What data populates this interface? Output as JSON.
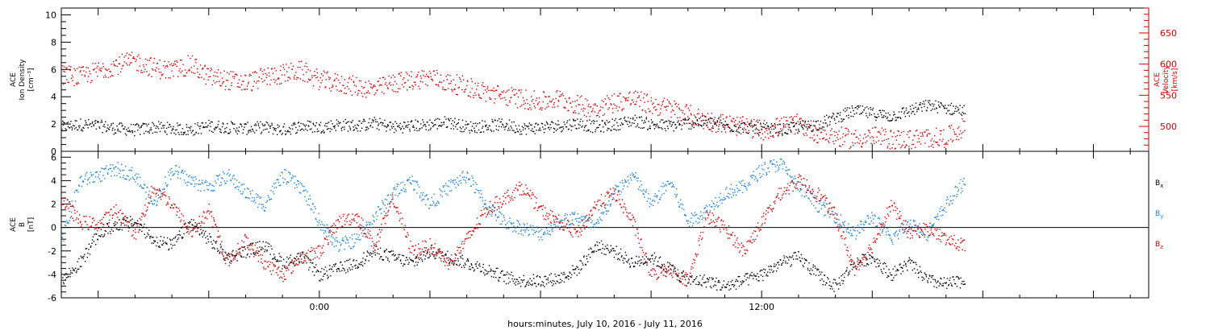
{
  "chart_data": [
    {
      "type": "scatter",
      "panel": "top",
      "xlabel": "hours:minutes, July 10, 2016 - July 11, 2016",
      "x_tick_labels": [
        "0:00",
        "12:00"
      ],
      "x_tick_hours": [
        0,
        12
      ],
      "xlim_hours": [
        -7,
        22.5
      ],
      "left_axis": {
        "label_lines": [
          "ACE",
          "Ion Density",
          "[cm⁻³]"
        ],
        "ylim": [
          0,
          10.5
        ],
        "ticks": [
          0,
          2,
          4,
          6,
          8,
          10
        ],
        "color": "#000000"
      },
      "right_axis": {
        "label_lines": [
          "ACE",
          "Velocity",
          "[km/s]"
        ],
        "ylim": [
          460,
          690
        ],
        "ticks": [
          500,
          550,
          600,
          650
        ],
        "color": "#cc0000"
      },
      "series": [
        {
          "axis": "left",
          "color": "#000000",
          "x": [
            -7,
            -6.5,
            -6,
            -5.5,
            -5,
            -4.5,
            -4,
            -3.5,
            -3,
            -2.5,
            -2,
            -1.5,
            -1,
            -0.5,
            0,
            0.5,
            1,
            1.5,
            2,
            2.5,
            3,
            3.5,
            4,
            4.5,
            5,
            5.5,
            6,
            6.5,
            7,
            7.5,
            8,
            8.5,
            9,
            9.5,
            10,
            10.5,
            11,
            11.5,
            12,
            12.5,
            13,
            13.5,
            14,
            14.5,
            15,
            15.5,
            16,
            16.5,
            17,
            17.5
          ],
          "y": [
            1.8,
            2.0,
            1.9,
            1.7,
            1.6,
            1.8,
            1.7,
            1.6,
            1.9,
            1.8,
            1.7,
            1.8,
            1.6,
            1.9,
            1.8,
            2.0,
            1.9,
            2.1,
            1.8,
            1.9,
            2.0,
            2.2,
            1.8,
            1.9,
            2.0,
            1.7,
            1.8,
            1.9,
            2.1,
            1.8,
            2.0,
            2.3,
            2.0,
            1.9,
            2.1,
            2.2,
            1.9,
            1.8,
            1.7,
            1.6,
            1.8,
            2.0,
            2.5,
            3.0,
            2.8,
            2.6,
            3.0,
            3.4,
            3.2,
            3.0
          ],
          "noise": 0.45
        },
        {
          "axis": "right",
          "color": "#cc0000",
          "x": [
            -7,
            -6.5,
            -6,
            -5.5,
            -5,
            -4.5,
            -4,
            -3.5,
            -3,
            -2.5,
            -2,
            -1.5,
            -1,
            -0.5,
            0,
            0.5,
            1,
            1.5,
            2,
            2.5,
            3,
            3.5,
            4,
            4.5,
            5,
            5.5,
            6,
            6.5,
            7,
            7.5,
            8,
            8.5,
            9,
            9.5,
            10,
            10.5,
            11,
            11.5,
            12,
            12.5,
            13,
            13.5,
            14,
            14.5,
            15,
            15.5,
            16,
            16.5,
            17,
            17.5
          ],
          "y": [
            585,
            580,
            590,
            600,
            605,
            595,
            590,
            600,
            580,
            575,
            570,
            580,
            585,
            590,
            575,
            570,
            565,
            560,
            570,
            575,
            580,
            570,
            565,
            555,
            550,
            545,
            540,
            545,
            535,
            530,
            540,
            545,
            535,
            530,
            520,
            510,
            505,
            500,
            495,
            500,
            505,
            490,
            485,
            480,
            485,
            480,
            480,
            482,
            483,
            500
          ],
          "noise": 16
        }
      ]
    },
    {
      "type": "scatter",
      "panel": "bottom",
      "xlim_hours": [
        -7,
        22.5
      ],
      "left_axis": {
        "label_lines": [
          "ACE",
          "B",
          "[nT]"
        ],
        "ylim": [
          -6,
          6.5
        ],
        "ticks": [
          -6,
          -4,
          -2,
          0,
          2,
          4,
          6
        ],
        "color": "#000000"
      },
      "zero_line": 0,
      "legend": {
        "placement": "right",
        "items": [
          {
            "label": "B",
            "sub": "x",
            "color": "#000000"
          },
          {
            "label": "B",
            "sub": "y",
            "color": "#1a7fd4"
          },
          {
            "label": "B",
            "sub": "z",
            "color": "#cc0000"
          }
        ]
      },
      "series": [
        {
          "name": "Bx",
          "color": "#000000",
          "x": [
            -7,
            -6.5,
            -6,
            -5.5,
            -5,
            -4.5,
            -4,
            -3.5,
            -3,
            -2.5,
            -2,
            -1.5,
            -1,
            -0.5,
            0,
            0.5,
            1,
            1.5,
            2,
            2.5,
            3,
            3.5,
            4,
            4.5,
            5,
            5.5,
            6,
            6.5,
            7,
            7.5,
            8,
            8.5,
            9,
            9.5,
            10,
            10.5,
            11,
            11.5,
            12,
            12.5,
            13,
            13.5,
            14,
            14.5,
            15,
            15.5,
            16,
            16.5,
            17,
            17.5
          ],
          "y": [
            -4.5,
            -3.0,
            -0.5,
            0.3,
            0.5,
            -1.0,
            -1.5,
            0.5,
            -1.0,
            -2.5,
            -2.0,
            -1.5,
            -3.0,
            -2.5,
            -4.0,
            -3.5,
            -3.0,
            -2.0,
            -2.5,
            -3.0,
            -2.0,
            -2.5,
            -3.0,
            -3.5,
            -4.2,
            -4.5,
            -4.5,
            -4.3,
            -3.5,
            -1.5,
            -2.0,
            -3.0,
            -2.5,
            -3.5,
            -4.5,
            -4.5,
            -5.0,
            -4.5,
            -4.0,
            -3.0,
            -2.5,
            -4.0,
            -5.0,
            -3.0,
            -2.5,
            -4.0,
            -3.0,
            -4.5,
            -4.8,
            -4.5
          ],
          "noise": 0.55
        },
        {
          "name": "By",
          "color": "#1a7fd4",
          "x": [
            -7,
            -6.5,
            -6,
            -5.5,
            -5,
            -4.5,
            -4,
            -3.5,
            -3,
            -2.5,
            -2,
            -1.5,
            -1,
            -0.5,
            0,
            0.5,
            1,
            1.5,
            2,
            2.5,
            3,
            3.5,
            4,
            4.5,
            5,
            5.5,
            6,
            6.5,
            7,
            7.5,
            8,
            8.5,
            9,
            9.5,
            10,
            10.5,
            11,
            11.5,
            12,
            12.5,
            13,
            13.5,
            14,
            14.5,
            15,
            15.5,
            16,
            16.5,
            17,
            17.5
          ],
          "y": [
            -1.0,
            4.0,
            4.5,
            5.0,
            4.5,
            2.0,
            5.0,
            4.0,
            3.5,
            4.5,
            3.0,
            2.0,
            4.5,
            3.5,
            0.5,
            -1.5,
            -1.0,
            1.0,
            3.0,
            4.0,
            2.0,
            3.5,
            4.5,
            2.0,
            0.5,
            0.0,
            -0.5,
            0.5,
            1.0,
            0.0,
            3.0,
            4.5,
            2.0,
            4.0,
            0.5,
            1.5,
            3.0,
            3.5,
            5.0,
            5.5,
            3.5,
            2.0,
            1.0,
            -0.5,
            1.0,
            -1.0,
            0.5,
            -0.5,
            2.0,
            4.0
          ],
          "noise": 0.6
        },
        {
          "name": "Bz",
          "color": "#cc0000",
          "x": [
            -7,
            -6.5,
            -6,
            -5.5,
            -5,
            -4.5,
            -4,
            -3.5,
            -3,
            -2.5,
            -2,
            -1.5,
            -1,
            -0.5,
            0,
            0.5,
            1,
            1.5,
            2,
            2.5,
            3,
            3.5,
            4,
            4.5,
            5,
            5.5,
            6,
            6.5,
            7,
            7.5,
            8,
            8.5,
            9,
            9.5,
            10,
            10.5,
            11,
            11.5,
            12,
            12.5,
            13,
            13.5,
            14,
            14.5,
            15,
            15.5,
            16,
            16.5,
            17,
            17.5
          ],
          "y": [
            2.5,
            0.5,
            0.3,
            1.5,
            -0.5,
            3.5,
            2.0,
            -0.5,
            1.5,
            -3.0,
            -1.0,
            -3.0,
            -4.0,
            -2.5,
            -2.0,
            0.5,
            1.0,
            -1.5,
            2.5,
            -2.0,
            -1.5,
            -3.0,
            -1.0,
            1.5,
            2.5,
            3.5,
            1.5,
            0.5,
            -0.5,
            2.0,
            3.0,
            0.5,
            -4.0,
            -3.5,
            -4.5,
            1.0,
            0.0,
            -2.0,
            0.5,
            3.0,
            4.0,
            3.0,
            1.0,
            -3.5,
            -1.5,
            2.0,
            -0.5,
            0.0,
            -1.0,
            -1.5
          ],
          "noise": 0.6
        }
      ]
    }
  ]
}
